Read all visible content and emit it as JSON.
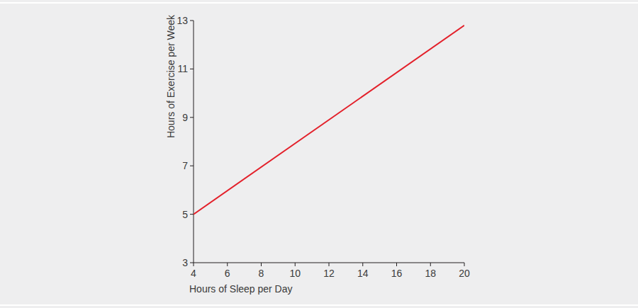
{
  "chart_data": {
    "type": "line",
    "x_label": "Hours of Sleep per Day",
    "y_label": "Hours of Exercise per Week",
    "x": [
      4,
      20
    ],
    "values": [
      5,
      12.8
    ],
    "color": "#e3202a",
    "xlim": [
      4,
      20
    ],
    "ylim": [
      3,
      13
    ],
    "xticks": [
      4,
      6,
      8,
      10,
      12,
      14,
      16,
      18,
      20
    ],
    "yticks": [
      3,
      5,
      7,
      9,
      11,
      13
    ]
  }
}
